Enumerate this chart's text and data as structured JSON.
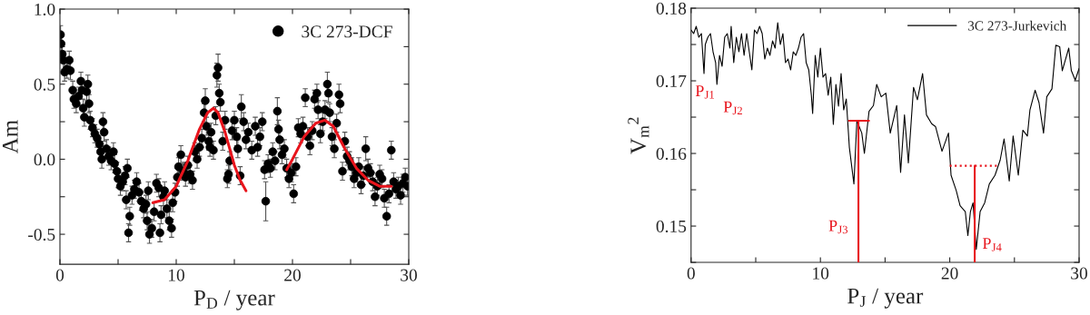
{
  "chart_data": [
    {
      "type": "scatter",
      "xlabel": "P$_{D}$ / year",
      "ylabel": "Am",
      "xlim": [
        0,
        30
      ],
      "ylim": [
        -0.7,
        1.0
      ],
      "xticks": [
        0,
        {
          "value": 5,
          "label": null
        },
        10,
        {
          "value": 15,
          "label": null
        },
        20,
        {
          "value": 25,
          "label": null
        },
        30
      ],
      "yticks": [
        {
          "value": -0.5,
          "label": "-0.5"
        },
        {
          "value": -0.25,
          "label": null
        },
        {
          "value": 0,
          "label": "0.0"
        },
        {
          "value": 0.25,
          "label": null
        },
        {
          "value": 0.5,
          "label": "0.5"
        },
        {
          "value": 0.75,
          "label": null
        },
        {
          "value": 1.0,
          "label": "1.0"
        }
      ],
      "grid": false,
      "legend": "top right",
      "series": [
        {
          "name": "3C 273-DCF",
          "marker": "circle",
          "color": "#000000",
          "x": [
            0.05,
            0.1,
            0.2,
            0.3,
            0.4,
            0.6,
            0.8,
            0.9,
            1.1,
            1.2,
            1.4,
            1.6,
            1.8,
            1.9,
            2.0,
            2.1,
            2.3,
            2.4,
            2.5,
            2.6,
            2.8,
            3.0,
            3.2,
            3.4,
            3.5,
            3.6,
            3.7,
            3.8,
            4.0,
            4.2,
            4.4,
            4.6,
            4.7,
            4.9,
            5.0,
            5.2,
            5.4,
            5.6,
            5.7,
            5.8,
            5.9,
            6.0,
            6.2,
            6.4,
            6.6,
            6.8,
            7.0,
            7.2,
            7.4,
            7.5,
            7.6,
            7.7,
            7.9,
            8.1,
            8.3,
            8.5,
            8.6,
            8.7,
            8.9,
            9.0,
            9.2,
            9.4,
            9.6,
            9.7,
            9.9,
            10.1,
            10.2,
            10.4,
            10.6,
            10.8,
            11.0,
            11.2,
            11.4,
            11.6,
            11.8,
            12.0,
            12.2,
            12.4,
            12.5,
            12.6,
            12.8,
            12.9,
            13.0,
            13.2,
            13.4,
            13.5,
            13.6,
            13.7,
            13.8,
            14.0,
            14.2,
            14.4,
            14.5,
            14.6,
            14.8,
            15.0,
            15.2,
            15.3,
            15.5,
            15.6,
            15.8,
            16.0,
            16.2,
            16.5,
            16.8,
            17.0,
            17.2,
            17.4,
            17.6,
            17.7,
            17.9,
            18.1,
            18.3,
            18.5,
            18.7,
            18.8,
            18.9,
            19.1,
            19.3,
            19.5,
            19.7,
            19.9,
            20.1,
            20.3,
            20.5,
            20.7,
            20.9,
            21.1,
            21.3,
            21.5,
            21.7,
            21.9,
            22.1,
            22.2,
            22.4,
            22.6,
            22.8,
            23.0,
            23.1,
            23.2,
            23.4,
            23.6,
            23.8,
            24.0,
            24.1,
            24.3,
            24.5,
            24.7,
            24.9,
            25.1,
            25.3,
            25.5,
            25.7,
            25.9,
            26.1,
            26.3,
            26.5,
            26.7,
            26.9,
            27.1,
            27.3,
            27.5,
            27.7,
            27.9,
            28.1,
            28.3,
            28.5,
            28.7,
            28.9,
            29.1,
            29.3,
            29.5,
            29.7,
            29.9
          ],
          "values": [
            0.83,
            0.77,
            0.7,
            0.66,
            0.58,
            0.6,
            0.66,
            0.59,
            0.46,
            0.4,
            0.37,
            0.42,
            0.52,
            0.46,
            0.34,
            0.28,
            0.45,
            0.5,
            0.37,
            0.26,
            0.21,
            0.17,
            0.14,
            0.1,
            0.05,
            0.0,
            0.25,
            0.18,
            0.07,
            0.02,
            -0.01,
            0.05,
            -0.03,
            -0.08,
            -0.13,
            -0.18,
            -0.15,
            -0.11,
            -0.27,
            -0.06,
            -0.49,
            -0.38,
            -0.24,
            -0.2,
            -0.15,
            -0.22,
            -0.28,
            -0.33,
            -0.3,
            -0.41,
            -0.21,
            -0.5,
            -0.46,
            -0.35,
            -0.16,
            -0.19,
            -0.49,
            -0.37,
            -0.25,
            -0.21,
            -0.33,
            -0.41,
            -0.46,
            -0.29,
            -0.22,
            -0.12,
            -0.05,
            0.03,
            -0.08,
            -0.12,
            -0.04,
            -0.1,
            -0.14,
            0.05,
            0.0,
            0.08,
            0.14,
            0.31,
            0.39,
            0.22,
            0.12,
            0.08,
            0.18,
            0.06,
            0.29,
            0.56,
            0.61,
            0.44,
            0.38,
            0.12,
            0.26,
            -0.13,
            -0.1,
            -0.01,
            0.19,
            0.26,
            0.15,
            0.07,
            -0.11,
            0.35,
            0.25,
            0.13,
            0.18,
            0.06,
            0.22,
            0.08,
            0.15,
            0.25,
            -0.07,
            -0.28,
            -0.03,
            -0.06,
            0.05,
            -0.01,
            0.32,
            0.2,
            0.13,
            0.03,
            0.07,
            -0.06,
            -0.13,
            -0.09,
            -0.23,
            -0.05,
            0.21,
            0.17,
            0.22,
            0.41,
            0.15,
            0.09,
            0.19,
            0.4,
            0.44,
            0.33,
            0.17,
            0.25,
            0.33,
            0.5,
            0.44,
            0.31,
            0.15,
            0.07,
            0.24,
            0.43,
            0.37,
            -0.08,
            0.12,
            0.02,
            -0.01,
            -0.05,
            -0.13,
            -0.09,
            -0.05,
            -0.17,
            -0.11,
            0.07,
            -0.06,
            -0.09,
            -0.15,
            -0.25,
            -0.18,
            -0.1,
            -0.13,
            -0.26,
            -0.38,
            -0.23,
            0.06,
            -0.15,
            -0.2,
            -0.18,
            -0.24,
            -0.16,
            -0.12,
            -0.18
          ],
          "errors": [
            0.06,
            0.06,
            0.06,
            0.06,
            0.06,
            0.06,
            0.06,
            0.06,
            0.06,
            0.06,
            0.06,
            0.06,
            0.06,
            0.06,
            0.06,
            0.06,
            0.06,
            0.06,
            0.06,
            0.06,
            0.06,
            0.06,
            0.06,
            0.06,
            0.06,
            0.06,
            0.06,
            0.06,
            0.06,
            0.06,
            0.06,
            0.06,
            0.06,
            0.06,
            0.06,
            0.06,
            0.06,
            0.06,
            0.06,
            0.06,
            0.06,
            0.06,
            0.06,
            0.06,
            0.06,
            0.06,
            0.06,
            0.06,
            0.06,
            0.06,
            0.06,
            0.06,
            0.06,
            0.06,
            0.06,
            0.06,
            0.06,
            0.06,
            0.06,
            0.06,
            0.06,
            0.06,
            0.06,
            0.06,
            0.06,
            0.06,
            0.06,
            0.06,
            0.06,
            0.06,
            0.06,
            0.06,
            0.06,
            0.06,
            0.06,
            0.06,
            0.06,
            0.06,
            0.08,
            0.06,
            0.06,
            0.06,
            0.06,
            0.06,
            0.06,
            0.08,
            0.09,
            0.06,
            0.06,
            0.06,
            0.06,
            0.06,
            0.06,
            0.06,
            0.06,
            0.06,
            0.06,
            0.06,
            0.06,
            0.08,
            0.06,
            0.06,
            0.06,
            0.06,
            0.06,
            0.06,
            0.06,
            0.06,
            0.06,
            0.13,
            0.06,
            0.06,
            0.06,
            0.06,
            0.09,
            0.06,
            0.06,
            0.06,
            0.06,
            0.06,
            0.06,
            0.06,
            0.06,
            0.06,
            0.06,
            0.06,
            0.06,
            0.06,
            0.06,
            0.06,
            0.06,
            0.06,
            0.06,
            0.06,
            0.06,
            0.06,
            0.06,
            0.08,
            0.06,
            0.06,
            0.06,
            0.06,
            0.06,
            0.07,
            0.06,
            0.06,
            0.06,
            0.06,
            0.06,
            0.06,
            0.06,
            0.06,
            0.06,
            0.06,
            0.06,
            0.08,
            0.06,
            0.06,
            0.06,
            0.06,
            0.06,
            0.06,
            0.06,
            0.06,
            0.06,
            0.06,
            0.06,
            0.06,
            0.06,
            0.06,
            0.06,
            0.06,
            0.06,
            0.06
          ]
        },
        {
          "type": "line",
          "color": "#e8141c",
          "x": [
            8,
            9,
            10,
            11,
            12,
            12.7,
            13.2,
            13.6,
            14.2,
            15,
            15.5,
            16
          ],
          "values": [
            -0.29,
            -0.27,
            -0.18,
            -0.01,
            0.2,
            0.31,
            0.34,
            0.31,
            0.18,
            -0.04,
            -0.14,
            -0.21
          ]
        },
        {
          "type": "line",
          "color": "#e8141c",
          "x": [
            19.5,
            20,
            21,
            22,
            22.8,
            23.5,
            24.5,
            25.5,
            26.5,
            27.5,
            28.5
          ],
          "values": [
            -0.07,
            0.0,
            0.15,
            0.24,
            0.26,
            0.22,
            0.07,
            -0.06,
            -0.14,
            -0.18,
            -0.18
          ]
        }
      ]
    },
    {
      "type": "line",
      "xlabel": "P$_{J}$ / year",
      "ylabel": "V$_{m}$$^{2}$",
      "xlim": [
        0,
        30
      ],
      "ylim": [
        0.145,
        0.18
      ],
      "xticks": [
        0,
        {
          "value": 5,
          "label": null
        },
        10,
        {
          "value": 15,
          "label": null
        },
        20,
        {
          "value": 25,
          "label": null
        },
        30
      ],
      "yticks": [
        {
          "value": 0.145,
          "label": null
        },
        0.15,
        {
          "value": 0.155,
          "label": null
        },
        0.16,
        {
          "value": 0.165,
          "label": null
        },
        0.17,
        {
          "value": 0.175,
          "label": null
        },
        0.18
      ],
      "grid": false,
      "legend": "top right",
      "annotations": [
        {
          "text": "P$_{J1}$",
          "x": 1.0,
          "y": 0.171
        },
        {
          "text": "P$_{J2}$",
          "x": 2.0,
          "y": 0.1695
        },
        {
          "text": "P$_{J3}$",
          "x": 12.94,
          "y": 0.145
        },
        {
          "text": "P$_{J4}$",
          "x": 21.93,
          "y": 0.145
        }
      ],
      "series": [
        {
          "name": "3C 273-Jurkevich",
          "color": "#000000",
          "line_style": "solid",
          "x": [
            0,
            0.2,
            0.4,
            0.6,
            0.8,
            1.0,
            1.1,
            1.3,
            1.5,
            1.7,
            1.9,
            2.0,
            2.2,
            2.4,
            2.6,
            2.8,
            3.0,
            3.1,
            3.3,
            3.5,
            3.7,
            3.9,
            4.1,
            4.3,
            4.5,
            4.7,
            4.9,
            5.1,
            5.3,
            5.5,
            5.7,
            5.9,
            6.1,
            6.3,
            6.5,
            6.7,
            6.9,
            7.1,
            7.3,
            7.5,
            7.7,
            7.9,
            8.1,
            8.3,
            8.5,
            8.7,
            8.9,
            9.1,
            9.3,
            9.4,
            9.6,
            9.8,
            10.0,
            10.2,
            10.4,
            10.6,
            10.8,
            11.0,
            11.2,
            11.4,
            11.6,
            11.8,
            12.0,
            12.24,
            12.59,
            12.82,
            13.2,
            13.4,
            13.76,
            14.1,
            14.35,
            14.7,
            15.06,
            15.4,
            15.9,
            16.2,
            16.5,
            16.8,
            17.2,
            17.5,
            17.9,
            18.2,
            18.6,
            18.9,
            19.4,
            19.9,
            20.1,
            20.5,
            20.8,
            21.2,
            21.4,
            21.6,
            21.8,
            22.05,
            22.35,
            22.7,
            23.06,
            23.5,
            23.9,
            24.2,
            24.6,
            24.9,
            25.3,
            25.65,
            26.0,
            26.2,
            26.6,
            26.9,
            27.25,
            27.5,
            27.9,
            28.2,
            28.5,
            28.7,
            29.2,
            29.4,
            29.7,
            30.0
          ],
          "values": [
            0.177,
            0.1765,
            0.1775,
            0.176,
            0.1765,
            0.171,
            0.175,
            0.176,
            0.1765,
            0.174,
            0.1725,
            0.1695,
            0.1735,
            0.172,
            0.176,
            0.1765,
            0.1745,
            0.1775,
            0.1725,
            0.176,
            0.174,
            0.1765,
            0.1735,
            0.1765,
            0.174,
            0.1715,
            0.177,
            0.1765,
            0.1775,
            0.1765,
            0.173,
            0.1745,
            0.1735,
            0.1755,
            0.1745,
            0.178,
            0.175,
            0.1765,
            0.1725,
            0.173,
            0.1715,
            0.174,
            0.1735,
            0.1745,
            0.176,
            0.1765,
            0.1725,
            0.1715,
            0.168,
            0.1655,
            0.1735,
            0.1705,
            0.1745,
            0.1705,
            0.171,
            0.168,
            0.1705,
            0.164,
            0.1695,
            0.1665,
            0.171,
            0.166,
            0.1675,
            0.1608,
            0.1558,
            0.1645,
            0.1628,
            0.16,
            0.1658,
            0.1666,
            0.1695,
            0.1678,
            0.1683,
            0.1628,
            0.1666,
            0.1574,
            0.1653,
            0.1587,
            0.1691,
            0.1674,
            0.171,
            0.1653,
            0.1641,
            0.1637,
            0.1603,
            0.1628,
            0.157,
            0.1549,
            0.1528,
            0.152,
            0.1487,
            0.152,
            0.1532,
            0.1468,
            0.152,
            0.1532,
            0.1558,
            0.157,
            0.1591,
            0.162,
            0.1562,
            0.1624,
            0.157,
            0.1632,
            0.1624,
            0.166,
            0.1687,
            0.167,
            0.1628,
            0.1678,
            0.1689,
            0.1749,
            0.1747,
            0.1714,
            0.1745,
            0.1714,
            0.1701,
            0.1717
          ]
        },
        {
          "color": "#e8141c",
          "line_style": "solid",
          "x": [
            12.2,
            13.76
          ],
          "values": [
            0.1645,
            0.1645
          ]
        },
        {
          "color": "#e8141c",
          "line_style": "solid",
          "x": [
            12.94,
            12.94
          ],
          "values": [
            0.1645,
            0.145
          ]
        },
        {
          "color": "#e8141c",
          "line_style": "dotted",
          "x": [
            20.0,
            23.76
          ],
          "values": [
            0.1583,
            0.1583
          ]
        },
        {
          "color": "#e8141c",
          "line_style": "solid",
          "x": [
            21.93,
            21.93
          ],
          "values": [
            0.1583,
            0.145
          ]
        }
      ]
    }
  ]
}
